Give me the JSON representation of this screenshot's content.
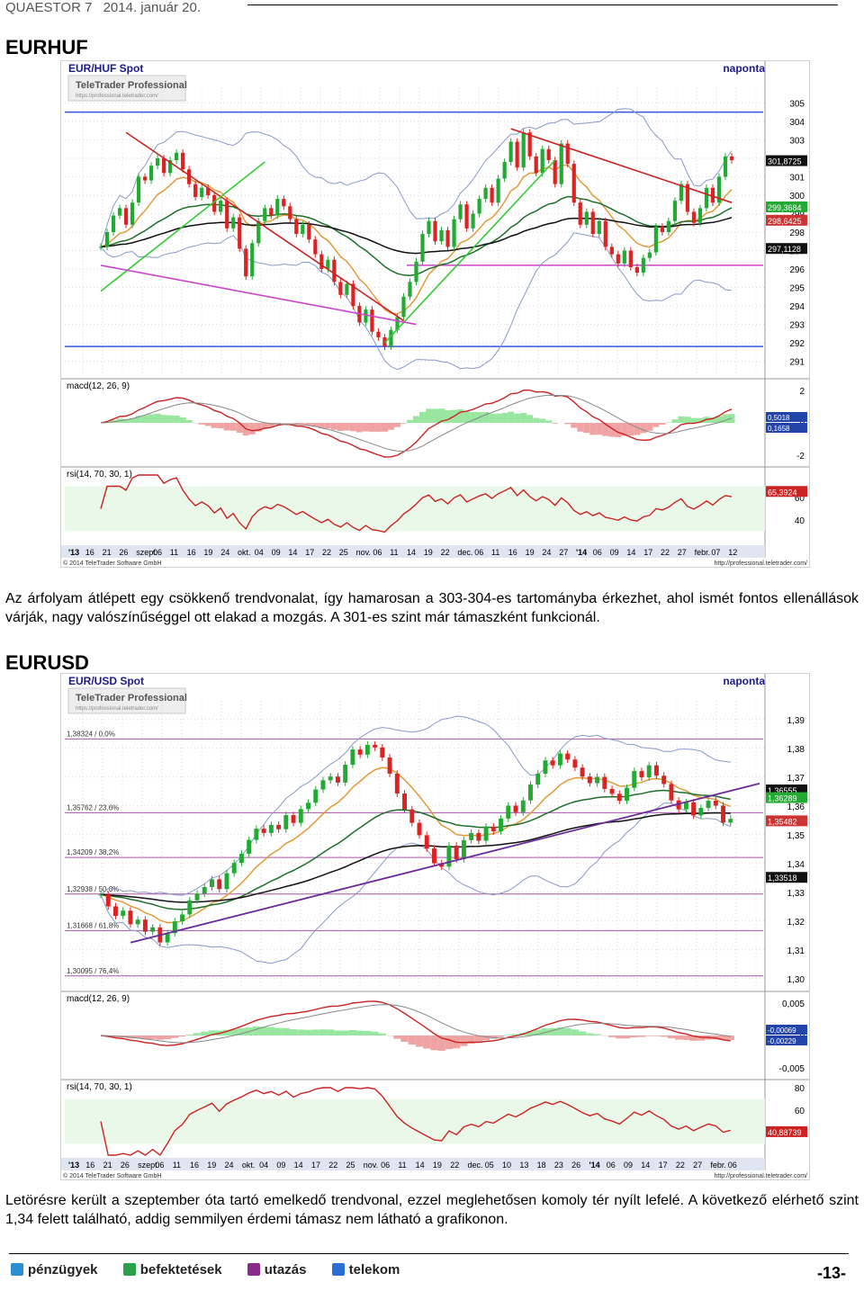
{
  "header": {
    "company": "QUAESTOR 7",
    "date": "2014. január 20."
  },
  "sections": [
    {
      "title": "EURHUF",
      "text": "Az árfolyam átlépett egy csökkenő trendvonalat, így hamarosan a 303-304-es tartományba érkezhet, ahol ismét fontos ellenállások várják, nagy valószínűséggel ott elakad a mozgás. A 301-es szint már támaszként funkcionál."
    },
    {
      "title": "EURUSD",
      "text": "Letörésre került a szeptember óta tartó emelkedő trendvonal, ezzel meglehetősen komoly tér nyílt lefelé. A következő elérhető szint 1,34 felett található, addig semmilyen érdemi támasz nem látható a grafikonon."
    }
  ],
  "chart_data": [
    {
      "type": "candlestick",
      "title": "EUR/HUF Spot",
      "period_label": "naponta",
      "logo": "TeleTrader Professional",
      "logo_url": "https://professional.teletrader.com/",
      "ylim": [
        290.2,
        305.8
      ],
      "yticks": [
        "305",
        "304",
        "303",
        "302",
        "301",
        "300",
        "299",
        "298",
        "297",
        "296",
        "295",
        "294",
        "293",
        "292",
        "291"
      ],
      "price_tags": [
        "301,8725",
        "299,3684",
        "298,6425",
        "297,1128"
      ],
      "macd_label": "macd(12, 26, 9)",
      "macd_ticks": [
        "2",
        "0",
        "-2"
      ],
      "macd_tags": [
        "0,5018",
        "0,1658"
      ],
      "rsi_label": "rsi(14, 70, 30, 1)",
      "rsi_ticks": [
        "60",
        "40"
      ],
      "rsi_tag": "65,3924",
      "xticks": [
        "'13",
        "16",
        "21",
        "26",
        "szept.",
        "06",
        "11",
        "16",
        "19",
        "24",
        "okt.",
        "04",
        "09",
        "14",
        "17",
        "22",
        "25",
        "nov.",
        "06",
        "11",
        "14",
        "19",
        "22",
        "dec.",
        "06",
        "11",
        "16",
        "19",
        "24",
        "27",
        "'14",
        "06",
        "09",
        "14",
        "17",
        "22",
        "27",
        "febr.",
        "07",
        "12"
      ],
      "copyright": "© 2014 TeleTrader Software GmbH",
      "source": "http://professional.teletrader.com/",
      "closes": [
        297.2,
        298.0,
        298.9,
        299.3,
        298.4,
        299.6,
        301.0,
        300.8,
        301.6,
        302.0,
        301.2,
        301.9,
        302.3,
        301.4,
        300.6,
        299.9,
        300.4,
        300.0,
        299.1,
        299.7,
        298.2,
        298.8,
        297.1,
        295.6,
        297.4,
        298.6,
        299.3,
        298.9,
        299.8,
        299.4,
        298.7,
        297.9,
        298.4,
        297.6,
        296.8,
        296.0,
        296.5,
        295.3,
        294.6,
        295.2,
        294.0,
        293.1,
        293.8,
        292.6,
        292.3,
        291.8,
        292.7,
        293.4,
        294.5,
        295.3,
        296.4,
        297.9,
        298.6,
        297.5,
        298.1,
        297.2,
        298.7,
        299.5,
        298.2,
        299.0,
        299.8,
        300.4,
        299.6,
        300.9,
        301.8,
        302.9,
        301.5,
        303.4,
        302.1,
        301.2,
        302.5,
        301.9,
        300.6,
        302.8,
        301.7,
        299.6,
        298.4,
        299.1,
        297.9,
        298.6,
        297.2,
        296.8,
        296.3,
        297.0,
        296.1,
        295.8,
        296.6,
        296.9,
        298.3,
        298.0,
        298.6,
        299.7,
        300.6,
        299.1,
        298.5,
        299.3,
        300.4,
        299.6,
        301.0,
        302.1,
        301.9
      ],
      "levels": {
        "blue": [
          304.5,
          291.8
        ],
        "magenta": [
          296.2
        ]
      }
    },
    {
      "type": "candlestick",
      "title": "EUR/USD Spot",
      "period_label": "naponta",
      "logo": "TeleTrader Professional",
      "logo_url": "https://professional.teletrader.com/",
      "ylim": [
        1.2965,
        1.3965
      ],
      "yticks": [
        "1,39",
        "1,38",
        "1,37",
        "1,36",
        "1,35",
        "1,34",
        "1,33",
        "1,32",
        "1,31",
        "1,30"
      ],
      "fib_levels": [
        {
          "label": "1,38324 / 0,0%",
          "value": 1.38324
        },
        {
          "label": "1,35762 / 23,6%",
          "value": 1.35762
        },
        {
          "label": "1,34209 / 38,2%",
          "value": 1.34209
        },
        {
          "label": "1,32938 / 50,0%",
          "value": 1.32938
        },
        {
          "label": "1,31668 / 61,8%",
          "value": 1.31668
        },
        {
          "label": "1,30095 / 76,4%",
          "value": 1.30095
        }
      ],
      "price_tags": [
        "1,36555",
        "1,36289",
        "1,35482",
        "1,33518"
      ],
      "macd_label": "macd(12, 26, 9)",
      "macd_ticks": [
        "0,005",
        "0",
        "-0,005"
      ],
      "macd_tags": [
        "-0,00069",
        "-0,00229"
      ],
      "rsi_label": "rsi(14, 70, 30, 1)",
      "rsi_ticks": [
        "80",
        "60",
        "40"
      ],
      "rsi_tag": "40,88739",
      "xticks": [
        "'13",
        "16",
        "21",
        "26",
        "szept.",
        "06",
        "11",
        "16",
        "19",
        "24",
        "okt.",
        "04",
        "09",
        "14",
        "17",
        "22",
        "25",
        "nov.",
        "06",
        "11",
        "14",
        "19",
        "22",
        "dec.",
        "05",
        "10",
        "13",
        "18",
        "23",
        "26",
        "'14",
        "06",
        "09",
        "14",
        "17",
        "22",
        "27",
        "febr.",
        "06"
      ],
      "copyright": "© 2014 TeleTrader Software GmbH",
      "source": "http://professional.teletrader.com/",
      "closes": [
        1.3292,
        1.3251,
        1.3218,
        1.3236,
        1.3189,
        1.3205,
        1.3163,
        1.3178,
        1.3126,
        1.3158,
        1.3199,
        1.3223,
        1.3272,
        1.3295,
        1.3318,
        1.3345,
        1.3311,
        1.3366,
        1.3402,
        1.3434,
        1.3482,
        1.3521,
        1.3506,
        1.3534,
        1.3519,
        1.3568,
        1.3541,
        1.3589,
        1.3611,
        1.3657,
        1.3689,
        1.3702,
        1.3681,
        1.3743,
        1.3796,
        1.3778,
        1.3812,
        1.3803,
        1.3768,
        1.3712,
        1.3643,
        1.3588,
        1.3541,
        1.3498,
        1.3452,
        1.3401,
        1.3389,
        1.3462,
        1.3415,
        1.3481,
        1.3506,
        1.3479,
        1.3528,
        1.3512,
        1.3556,
        1.3601,
        1.3578,
        1.3619,
        1.3674,
        1.3712,
        1.3758,
        1.3741,
        1.3782,
        1.3761,
        1.3733,
        1.3702,
        1.3679,
        1.3701,
        1.3659,
        1.3642,
        1.3618,
        1.3663,
        1.3721,
        1.3699,
        1.3741,
        1.3705,
        1.3676,
        1.3619,
        1.3588,
        1.3612,
        1.3567,
        1.3593,
        1.3618,
        1.3601,
        1.3542,
        1.3555
      ],
      "levels": {}
    }
  ],
  "footer": {
    "items": [
      "pénzügyek",
      "befektetések",
      "utazás",
      "telekom"
    ],
    "colors": [
      "#2b8fd6",
      "#2aa04a",
      "#8a2a8a",
      "#2b6fd6"
    ],
    "page": "-13-"
  }
}
